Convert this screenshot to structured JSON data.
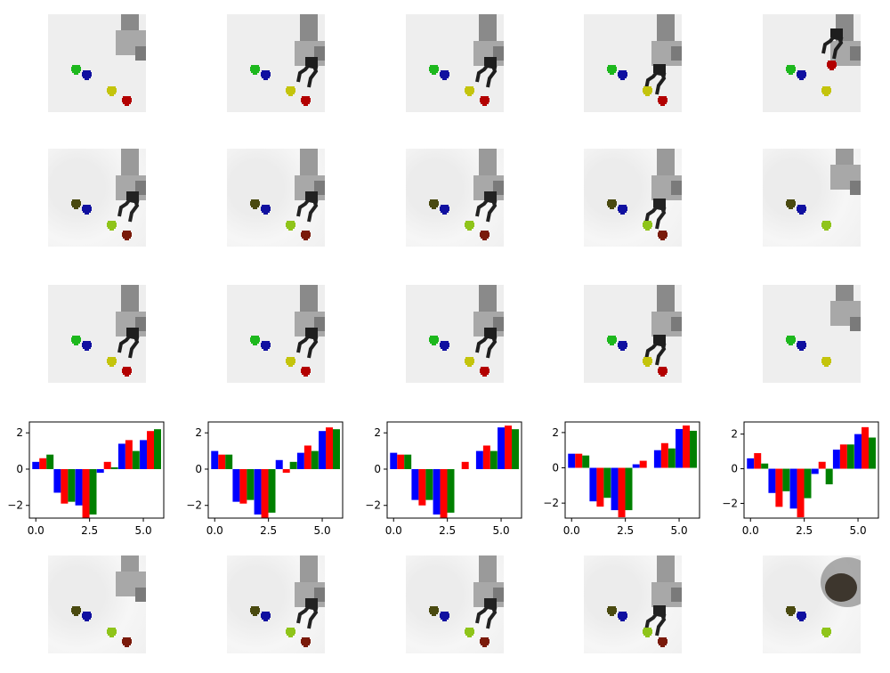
{
  "figure": {
    "rows": [
      {
        "name": "image-row-1",
        "style": "clean"
      },
      {
        "name": "image-row-2",
        "style": "noisy"
      },
      {
        "name": "image-row-3",
        "style": "clean"
      },
      {
        "name": "bar-chart-row",
        "style": "chart"
      },
      {
        "name": "image-row-5",
        "style": "noisy"
      }
    ]
  },
  "colors": {
    "blue": "#0000ff",
    "red": "#ff0000",
    "green": "#008000",
    "background": "#eeeeee",
    "arm": "#8a8a8a",
    "gripper": "#1e1e1e",
    "cube_green": "#1db81d",
    "cube_blue": "#1010a0",
    "cube_yellow": "#c4c40c",
    "cube_red": "#b30000"
  },
  "icons": [
    "robot-arm-icon",
    "gripper-icon",
    "cube-icon"
  ],
  "image_tiles": [
    [
      {
        "arm": "up",
        "gripper": false,
        "cubes": [
          "green",
          "blue",
          "yellow",
          "red"
        ]
      },
      {
        "arm": "reach",
        "gripper": true,
        "cubes": [
          "green",
          "blue",
          "yellow",
          "red"
        ]
      },
      {
        "arm": "reach",
        "gripper": true,
        "cubes": [
          "green",
          "blue",
          "yellow",
          "red"
        ]
      },
      {
        "arm": "down",
        "gripper": true,
        "cubes": [
          "green",
          "blue",
          "yellow",
          "red"
        ]
      },
      {
        "arm": "grasp",
        "gripper": true,
        "cubes": [
          "green",
          "blue",
          "yellow",
          "held-red"
        ]
      }
    ],
    [
      {
        "arm": "reach",
        "gripper": true,
        "cubes": [
          "olive",
          "blue",
          "lime",
          "darkred"
        ]
      },
      {
        "arm": "reach",
        "gripper": true,
        "cubes": [
          "olive",
          "blue",
          "lime",
          "darkred"
        ]
      },
      {
        "arm": "reach",
        "gripper": true,
        "cubes": [
          "olive",
          "blue",
          "lime",
          "darkred"
        ]
      },
      {
        "arm": "down",
        "gripper": true,
        "cubes": [
          "olive",
          "blue",
          "lime",
          "darkred"
        ]
      },
      {
        "arm": "up",
        "gripper": false,
        "cubes": [
          "olive",
          "blue",
          "lime"
        ]
      }
    ],
    [
      {
        "arm": "reach",
        "gripper": true,
        "cubes": [
          "green",
          "blue",
          "yellow",
          "red"
        ]
      },
      {
        "arm": "reach",
        "gripper": true,
        "cubes": [
          "green",
          "blue",
          "yellow",
          "red"
        ]
      },
      {
        "arm": "reach",
        "gripper": true,
        "cubes": [
          "green",
          "blue",
          "yellow",
          "red"
        ]
      },
      {
        "arm": "down",
        "gripper": true,
        "cubes": [
          "green",
          "blue",
          "yellow",
          "red"
        ]
      },
      {
        "arm": "up",
        "gripper": false,
        "cubes": [
          "green",
          "blue",
          "yellow"
        ]
      }
    ],
    [
      {
        "arm": "up",
        "gripper": false,
        "cubes": [
          "olive",
          "blue",
          "lime",
          "darkred"
        ]
      },
      {
        "arm": "reach",
        "gripper": true,
        "cubes": [
          "olive",
          "blue",
          "lime",
          "darkred"
        ]
      },
      {
        "arm": "reach",
        "gripper": true,
        "cubes": [
          "olive",
          "blue",
          "lime",
          "darkred"
        ]
      },
      {
        "arm": "down",
        "gripper": true,
        "cubes": [
          "olive",
          "blue",
          "lime",
          "darkred"
        ]
      },
      {
        "arm": "blur",
        "gripper": false,
        "cubes": [
          "olive",
          "blue",
          "lime"
        ]
      }
    ]
  ],
  "chart_data": [
    {
      "type": "bar",
      "x_offsets": [
        0,
        0.33,
        0.66
      ],
      "x": [
        0,
        1,
        2,
        3,
        4,
        5
      ],
      "series": [
        {
          "color": "#0000ff",
          "values": [
            0.4,
            -1.3,
            -2.0,
            -0.2,
            1.4,
            1.6
          ]
        },
        {
          "color": "#ff0000",
          "values": [
            0.6,
            -1.9,
            -2.7,
            0.4,
            1.6,
            2.1
          ]
        },
        {
          "color": "#008000",
          "values": [
            0.8,
            -1.8,
            -2.5,
            0.1,
            1.0,
            2.2
          ]
        }
      ],
      "xlim": [
        -0.3,
        5.95
      ],
      "ylim": [
        -2.7,
        2.6
      ],
      "xticks": [
        0,
        2.5,
        5
      ],
      "xtick_labels": [
        "0.0",
        "2.5",
        "5.0"
      ],
      "yticks": [
        -2,
        0,
        2
      ],
      "ytick_labels": [
        "−2",
        "0",
        "2"
      ]
    },
    {
      "type": "bar",
      "x_offsets": [
        0,
        0.33,
        0.66
      ],
      "x": [
        0,
        1,
        2,
        3,
        4,
        5
      ],
      "series": [
        {
          "color": "#0000ff",
          "values": [
            1.0,
            -1.8,
            -2.5,
            0.5,
            0.9,
            2.1
          ]
        },
        {
          "color": "#ff0000",
          "values": [
            0.8,
            -1.9,
            -2.7,
            -0.2,
            1.3,
            2.3
          ]
        },
        {
          "color": "#008000",
          "values": [
            0.8,
            -1.7,
            -2.4,
            0.4,
            1.0,
            2.2
          ]
        }
      ],
      "xlim": [
        -0.3,
        5.95
      ],
      "ylim": [
        -2.7,
        2.6
      ],
      "xticks": [
        0,
        2.5,
        5
      ],
      "xtick_labels": [
        "0.0",
        "2.5",
        "5.0"
      ],
      "yticks": [
        -2,
        0,
        2
      ],
      "ytick_labels": [
        "−2",
        "0",
        "2"
      ]
    },
    {
      "type": "bar",
      "x_offsets": [
        0,
        0.33,
        0.66
      ],
      "x": [
        0,
        1,
        2,
        3,
        4,
        5
      ],
      "series": [
        {
          "color": "#0000ff",
          "values": [
            0.9,
            -1.7,
            -2.5,
            0.0,
            1.0,
            2.3
          ]
        },
        {
          "color": "#ff0000",
          "values": [
            0.8,
            -2.0,
            -2.7,
            0.4,
            1.3,
            2.4
          ]
        },
        {
          "color": "#008000",
          "values": [
            0.8,
            -1.7,
            -2.4,
            0.0,
            1.0,
            2.2
          ]
        }
      ],
      "xlim": [
        -0.3,
        5.95
      ],
      "ylim": [
        -2.7,
        2.6
      ],
      "xticks": [
        0,
        2.5,
        5
      ],
      "xtick_labels": [
        "0.0",
        "2.5",
        "5.0"
      ],
      "yticks": [
        -2,
        0,
        2
      ],
      "ytick_labels": [
        "−2",
        "0",
        "2"
      ]
    },
    {
      "type": "bar",
      "x_offsets": [
        0,
        0.33,
        0.66
      ],
      "x": [
        0,
        1,
        2,
        3,
        4,
        5
      ],
      "series": [
        {
          "color": "#0000ff",
          "values": [
            0.8,
            -1.9,
            -2.4,
            0.2,
            1.0,
            2.2
          ]
        },
        {
          "color": "#ff0000",
          "values": [
            0.8,
            -2.2,
            -2.8,
            0.4,
            1.4,
            2.4
          ]
        },
        {
          "color": "#008000",
          "values": [
            0.7,
            -1.7,
            -2.4,
            0.0,
            1.1,
            2.1
          ]
        }
      ],
      "xlim": [
        -0.3,
        5.95
      ],
      "ylim": [
        -2.85,
        2.6
      ],
      "xticks": [
        0,
        2.5,
        5
      ],
      "xtick_labels": [
        "0.0",
        "2.5",
        "5.0"
      ],
      "yticks": [
        -2,
        0,
        2
      ],
      "ytick_labels": [
        "−2",
        "0",
        "2"
      ]
    },
    {
      "type": "bar",
      "x_offsets": [
        0,
        0.33,
        0.66
      ],
      "x": [
        0,
        1,
        2,
        3,
        4,
        5
      ],
      "series": [
        {
          "color": "#0000ff",
          "values": [
            0.6,
            -1.4,
            -2.3,
            -0.3,
            1.1,
            2.0
          ]
        },
        {
          "color": "#ff0000",
          "values": [
            0.9,
            -2.2,
            -2.8,
            0.4,
            1.4,
            2.4
          ]
        },
        {
          "color": "#008000",
          "values": [
            0.3,
            -1.3,
            -1.7,
            -0.9,
            1.4,
            1.8
          ]
        }
      ],
      "xlim": [
        -0.3,
        5.95
      ],
      "ylim": [
        -2.85,
        2.7
      ],
      "xticks": [
        0,
        2.5,
        5
      ],
      "xtick_labels": [
        "0.0",
        "2.5",
        "5.0"
      ],
      "yticks": [
        -2,
        0,
        2
      ],
      "ytick_labels": [
        "−2",
        "0",
        "2"
      ]
    }
  ]
}
